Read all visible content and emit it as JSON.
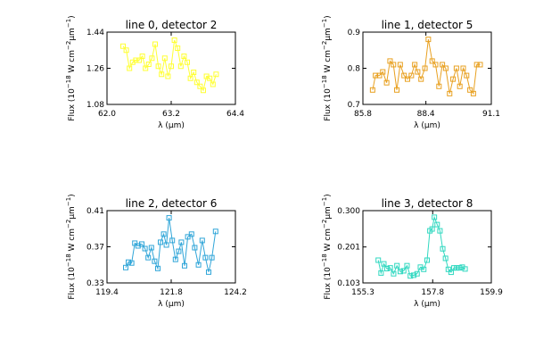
{
  "chart_data": [
    {
      "type": "line",
      "title": "line 0, detector 2",
      "xlabel": "λ (μm)",
      "ylabel_parts": {
        "base": "Flux (10",
        "exp1": "−18",
        "mid": " W cm",
        "exp2": "−2",
        "mid2": "μm",
        "exp3": "−1",
        "end": ")"
      },
      "xlim": [
        62.0,
        64.4
      ],
      "ylim": [
        1.08,
        1.44
      ],
      "xticks": [
        "62.0",
        "63.2",
        "64.4"
      ],
      "yticks": [
        "1.08",
        "1.26",
        "1.44"
      ],
      "color": "#ffff33",
      "marker": "square",
      "x": [
        62.3,
        62.36,
        62.42,
        62.48,
        62.54,
        62.6,
        62.66,
        62.72,
        62.78,
        62.84,
        62.9,
        62.96,
        63.02,
        63.08,
        63.14,
        63.2,
        63.26,
        63.32,
        63.38,
        63.44,
        63.5,
        63.56,
        63.62,
        63.68,
        63.74,
        63.8,
        63.86,
        63.92,
        63.98,
        64.04
      ],
      "y": [
        1.37,
        1.35,
        1.26,
        1.29,
        1.3,
        1.3,
        1.32,
        1.26,
        1.28,
        1.31,
        1.38,
        1.27,
        1.23,
        1.31,
        1.22,
        1.27,
        1.4,
        1.36,
        1.27,
        1.32,
        1.29,
        1.21,
        1.24,
        1.19,
        1.17,
        1.15,
        1.22,
        1.21,
        1.18,
        1.23
      ]
    },
    {
      "type": "line",
      "title": "line 1, detector 5",
      "xlabel": "λ (μm)",
      "ylabel_parts": {
        "base": "Flux (10",
        "exp1": "−18",
        "mid": " W cm",
        "exp2": "−2",
        "mid2": "μm",
        "exp3": "−1",
        "end": ")"
      },
      "xlim": [
        85.8,
        91.1
      ],
      "ylim": [
        0.7,
        0.9
      ],
      "xticks": [
        "85.8",
        "88.4",
        "91.1"
      ],
      "yticks": [
        "0.7",
        "0.8",
        "0.9"
      ],
      "color": "#e8a020",
      "marker": "square",
      "x": [
        86.2,
        86.32,
        86.48,
        86.62,
        86.78,
        86.92,
        87.06,
        87.2,
        87.34,
        87.5,
        87.64,
        87.8,
        87.94,
        88.06,
        88.2,
        88.36,
        88.5,
        88.66,
        88.8,
        88.94,
        89.08,
        89.22,
        89.38,
        89.52,
        89.66,
        89.8,
        89.94,
        90.08,
        90.22,
        90.36,
        90.5,
        90.64
      ],
      "y": [
        0.74,
        0.78,
        0.78,
        0.79,
        0.76,
        0.82,
        0.81,
        0.74,
        0.81,
        0.78,
        0.77,
        0.78,
        0.81,
        0.79,
        0.77,
        0.8,
        0.88,
        0.82,
        0.81,
        0.75,
        0.81,
        0.8,
        0.73,
        0.77,
        0.8,
        0.75,
        0.8,
        0.78,
        0.74,
        0.73,
        0.81,
        0.81
      ]
    },
    {
      "type": "line",
      "title": "line 2, detector 6",
      "xlabel": "λ (μm)",
      "ylabel_parts": {
        "base": "Flux (10",
        "exp1": "−18",
        "mid": " W cm",
        "exp2": "−2",
        "mid2": "μm",
        "exp3": "−1",
        "end": ")"
      },
      "xlim": [
        119.4,
        124.2
      ],
      "ylim": [
        0.33,
        0.41
      ],
      "xticks": [
        "119.4",
        "121.8",
        "124.2"
      ],
      "yticks": [
        "0.33",
        "0.37",
        "0.41"
      ],
      "color": "#2fa5d8",
      "marker": "square",
      "x": [
        120.1,
        120.2,
        120.32,
        120.44,
        120.56,
        120.7,
        120.82,
        120.94,
        121.06,
        121.18,
        121.3,
        121.4,
        121.52,
        121.62,
        121.72,
        121.84,
        121.96,
        122.08,
        122.18,
        122.3,
        122.42,
        122.56,
        122.68,
        122.82,
        122.96,
        123.08,
        123.2,
        123.32,
        123.46
      ],
      "y": [
        0.347,
        0.353,
        0.352,
        0.374,
        0.371,
        0.373,
        0.368,
        0.358,
        0.369,
        0.354,
        0.346,
        0.375,
        0.384,
        0.372,
        0.402,
        0.377,
        0.356,
        0.365,
        0.375,
        0.349,
        0.381,
        0.384,
        0.369,
        0.35,
        0.377,
        0.358,
        0.342,
        0.358,
        0.387
      ]
    },
    {
      "type": "line",
      "title": "line 3, detector 8",
      "xlabel": "λ (μm)",
      "ylabel_parts": {
        "base": "Flux (10",
        "exp1": "−18",
        "mid": " W cm",
        "exp2": "−2",
        "mid2": "μm",
        "exp3": "−1",
        "end": ")"
      },
      "xlim": [
        155.3,
        159.9
      ],
      "ylim": [
        0.103,
        0.3
      ],
      "xticks": [
        "155.3",
        "157.8",
        "159.9"
      ],
      "yticks": [
        "0.103",
        "0.201",
        "0.300"
      ],
      "color": "#30d8c0",
      "marker": "square",
      "x": [
        155.85,
        155.95,
        156.05,
        156.16,
        156.28,
        156.4,
        156.52,
        156.64,
        156.76,
        156.88,
        157.0,
        157.12,
        157.24,
        157.36,
        157.48,
        157.6,
        157.7,
        157.78,
        157.86,
        157.96,
        158.06,
        158.16,
        158.26,
        158.36,
        158.46,
        158.56,
        158.66,
        158.76,
        158.86,
        158.96
      ],
      "y": [
        0.165,
        0.13,
        0.155,
        0.142,
        0.144,
        0.128,
        0.15,
        0.134,
        0.136,
        0.15,
        0.122,
        0.124,
        0.128,
        0.146,
        0.14,
        0.165,
        0.245,
        0.25,
        0.282,
        0.262,
        0.245,
        0.196,
        0.17,
        0.14,
        0.132,
        0.144,
        0.144,
        0.144,
        0.146,
        0.141
      ]
    }
  ]
}
